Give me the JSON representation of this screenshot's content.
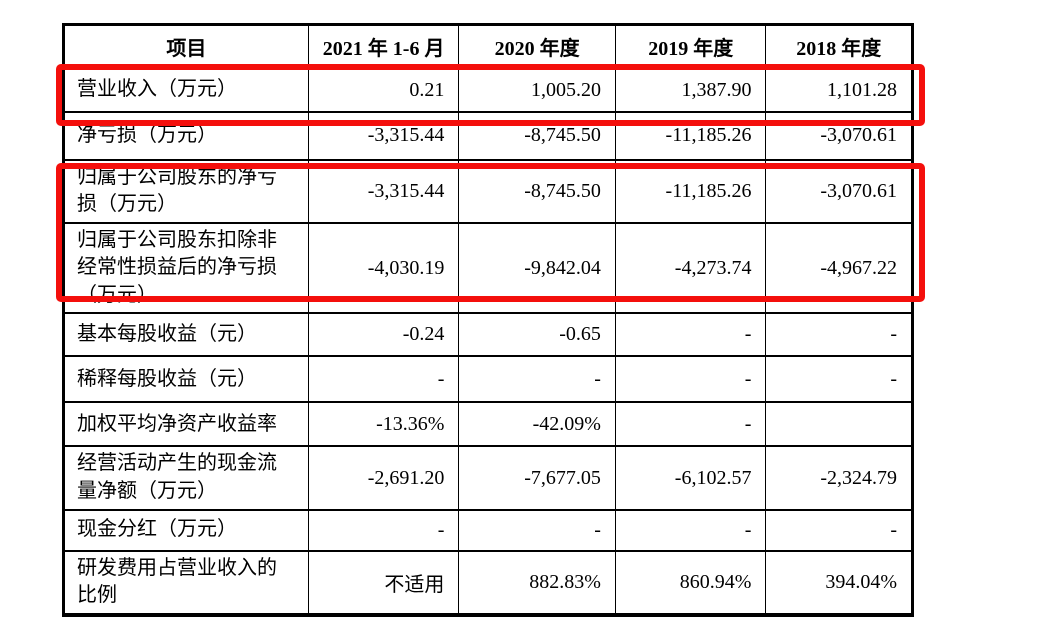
{
  "table": {
    "columns": [
      "项目",
      "2021 年 1-6 月",
      "2020 年度",
      "2019 年度",
      "2018 年度"
    ],
    "rows": [
      {
        "label": "营业收入（万元）",
        "values": [
          "0.21",
          "1,005.20",
          "1,387.90",
          "1,101.28"
        ]
      },
      {
        "label": "净亏损（万元）",
        "values": [
          "-3,315.44",
          "-8,745.50",
          "-11,185.26",
          "-3,070.61"
        ]
      },
      {
        "label": "归属于公司股东的净亏损（万元）",
        "values": [
          "-3,315.44",
          "-8,745.50",
          "-11,185.26",
          "-3,070.61"
        ]
      },
      {
        "label": "归属于公司股东扣除非经常性损益后的净亏损（万元）",
        "values": [
          "-4,030.19",
          "-9,842.04",
          "-4,273.74",
          "-4,967.22"
        ]
      },
      {
        "label": "基本每股收益（元）",
        "values": [
          "-0.24",
          "-0.65",
          "-",
          "-"
        ]
      },
      {
        "label": "稀释每股收益（元）",
        "values": [
          "-",
          "-",
          "-",
          "-"
        ]
      },
      {
        "label": "加权平均净资产收益率",
        "values": [
          "-13.36%",
          "-42.09%",
          "-",
          ""
        ]
      },
      {
        "label": "经营活动产生的现金流量净额（万元）",
        "values": [
          "-2,691.20",
          "-7,677.05",
          "-6,102.57",
          "-2,324.79"
        ]
      },
      {
        "label": "现金分红（万元）",
        "values": [
          "-",
          "-",
          "-",
          "-"
        ]
      },
      {
        "label": "研发费用占营业收入的比例",
        "values": [
          "不适用",
          "882.83%",
          "860.94%",
          "394.04%"
        ]
      }
    ],
    "highlight_color": "#f40f0c",
    "highlights": [
      {
        "name": "revenue-row",
        "description": "营业收入（万元）"
      },
      {
        "name": "net-loss-rows",
        "description": "归属于公司股东的净亏损 / 扣除非经常性损益后的净亏损"
      }
    ]
  }
}
